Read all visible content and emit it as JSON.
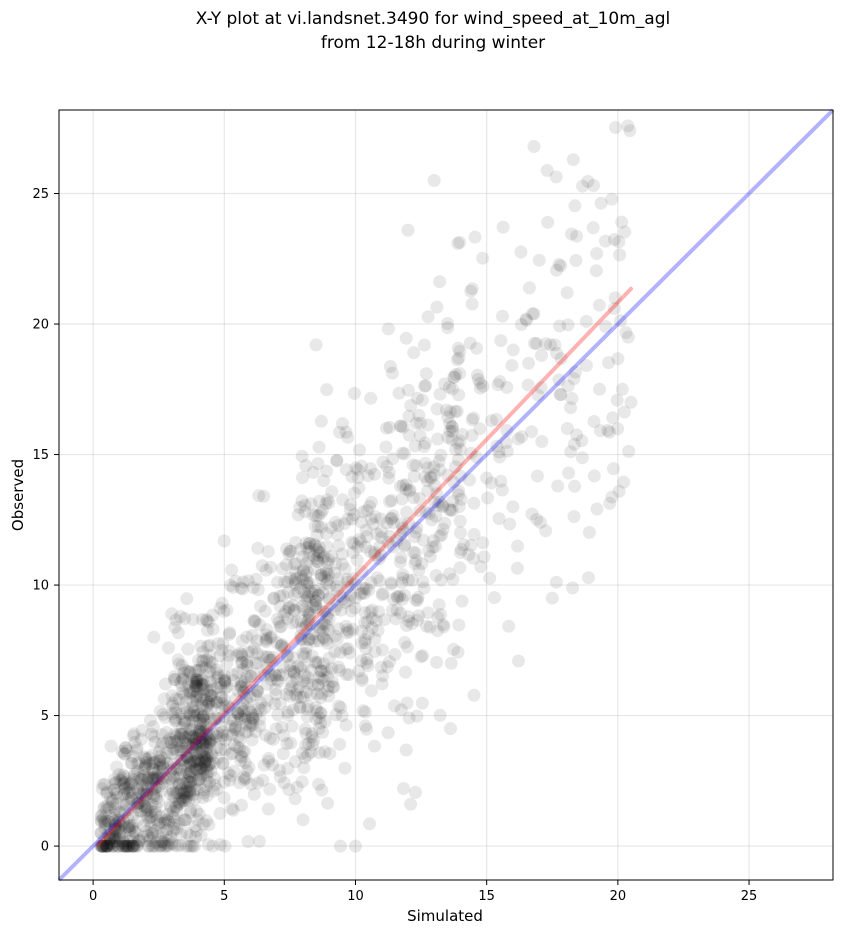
{
  "chart_data": {
    "type": "scatter",
    "title_line1": "X-Y plot at vi.landsnet.3490 for wind_speed_at_10m_agl",
    "title_line2": "from 12-18h during winter",
    "xlabel": "Simulated",
    "ylabel": "Observed",
    "xlim": [
      -1.3,
      28.2
    ],
    "ylim": [
      -1.3,
      28.2
    ],
    "xticks": [
      0,
      5,
      10,
      15,
      20,
      25
    ],
    "yticks": [
      0,
      5,
      10,
      15,
      20,
      25
    ],
    "grid": true,
    "point_color": "#000000",
    "point_alpha": 0.09,
    "n_points": 1800,
    "sample_points": {
      "x": [
        0.3,
        0.8,
        1.2,
        1.5,
        2.0,
        2.4,
        2.8,
        3.1,
        3.5,
        3.9,
        4.2,
        4.7,
        5.1,
        5.5,
        6.0,
        6.4,
        7.0,
        7.5,
        8.1,
        8.6,
        9.0,
        9.5,
        10.0,
        10.4,
        10.9,
        11.3,
        11.8,
        12.2,
        12.7,
        13.1,
        13.6,
        14.0,
        14.5,
        15.0,
        15.5,
        16.0,
        16.6,
        17.1,
        17.6,
        18.2,
        18.8,
        19.3,
        19.9,
        20.4,
        3.0,
        6.5,
        12.0,
        13.0,
        16.8,
        18.3,
        12.1,
        8.5,
        10.0,
        17.5,
        20.5
      ],
      "y": [
        0.5,
        1.2,
        2.0,
        0.8,
        3.1,
        1.5,
        2.6,
        4.0,
        1.0,
        3.5,
        5.0,
        4.2,
        6.1,
        3.8,
        6.5,
        5.2,
        7.8,
        6.0,
        8.4,
        9.6,
        7.2,
        10.8,
        9.5,
        12.1,
        11.0,
        13.2,
        10.4,
        14.6,
        12.8,
        13.5,
        15.9,
        12.0,
        16.4,
        14.1,
        17.8,
        13.0,
        18.5,
        15.5,
        19.2,
        16.8,
        20.1,
        17.5,
        21.0,
        19.5,
        8.9,
        13.4,
        23.6,
        25.5,
        26.8,
        26.3,
        1.6,
        19.2,
        0.0,
        9.5,
        17.0
      ]
    },
    "reference_line": {
      "label": "",
      "color": "#0000ff",
      "alpha": 0.3,
      "x": [
        -1.3,
        28.2
      ],
      "y": [
        -1.3,
        28.2
      ]
    },
    "fit_line": {
      "label": "",
      "color": "#ff0000",
      "alpha": 0.3,
      "x": [
        0.2,
        20.5
      ],
      "y": [
        0.05,
        21.35
      ]
    }
  }
}
